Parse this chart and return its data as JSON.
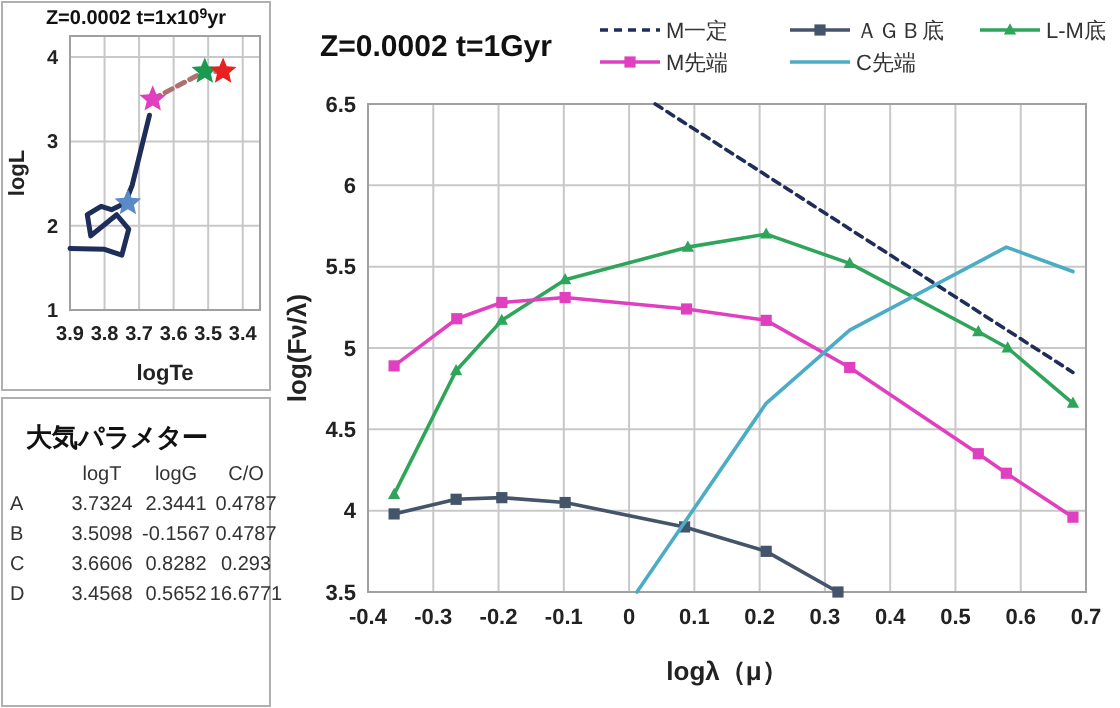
{
  "chart_data": [
    {
      "type": "line",
      "title": "Z=0.0002 t=1x10$^{9}$yr",
      "xlabel": "logTe",
      "ylabel": "logL",
      "xlim": [
        3.9,
        3.35
      ],
      "xticks": [
        3.9,
        3.8,
        3.7,
        3.6,
        3.5,
        3.4
      ],
      "ylim": [
        1,
        4.25
      ],
      "yticks": [
        1,
        2,
        3,
        4
      ],
      "grid": true,
      "series": [
        {
          "color": "#1f2d5a",
          "x": [
            3.9,
            3.8,
            3.75,
            3.73,
            3.765,
            3.84,
            3.85,
            3.81,
            3.78,
            3.74,
            3.72,
            3.67
          ],
          "values": [
            1.73,
            1.72,
            1.65,
            1.96,
            2.13,
            1.88,
            2.13,
            2.23,
            2.19,
            2.27,
            2.48,
            3.31
          ]
        },
        {
          "color": "#b07070",
          "line_style": "dashed",
          "x": [
            3.6606,
            3.5098,
            3.4568
          ],
          "values": [
            3.5,
            3.83,
            3.83
          ]
        },
        {
          "type": "scatter",
          "marker": "star",
          "x": [
            3.7324,
            3.6606,
            3.5098,
            3.4568
          ],
          "values": [
            2.27,
            3.5,
            3.83,
            3.83
          ],
          "colors": [
            "#5b8ac6",
            "#e040c0",
            "#1a9a50",
            "#e82020"
          ]
        }
      ]
    },
    {
      "type": "line",
      "title": "Z=0.0002  t=1Gyr",
      "xlabel": "logλ（μ）",
      "ylabel": "log(Fν/λ)",
      "xlim": [
        -0.4,
        0.7
      ],
      "xticks": [
        -0.4,
        -0.3,
        -0.2,
        -0.1,
        0,
        0.1,
        0.2,
        0.3,
        0.4,
        0.5,
        0.6,
        0.7
      ],
      "ylim": [
        3.5,
        6.5
      ],
      "yticks": [
        3.5,
        4,
        4.5,
        5,
        5.5,
        6,
        6.5
      ],
      "grid": true,
      "legend": "top right",
      "series": [
        {
          "name": "M一定",
          "color": "#1f2d5a",
          "line_style": "dashed",
          "marker": "none",
          "x": [
            0.04,
            0.68
          ],
          "values": [
            6.5,
            4.85
          ]
        },
        {
          "name": "ＡＧＢ底",
          "color": "#44546a",
          "marker": "square",
          "x": [
            -0.36,
            -0.265,
            -0.195,
            -0.098,
            0.085,
            0.21,
            0.32
          ],
          "values": [
            3.98,
            4.07,
            4.08,
            4.05,
            3.9,
            3.75,
            3.5
          ]
        },
        {
          "name": "L-M底",
          "color": "#2ea55a",
          "marker": "triangle",
          "x": [
            -0.36,
            -0.265,
            -0.195,
            -0.098,
            0.09,
            0.21,
            0.338,
            0.535,
            0.58,
            0.68
          ],
          "values": [
            4.1,
            4.86,
            5.17,
            5.42,
            5.62,
            5.7,
            5.52,
            5.1,
            5.0,
            4.66
          ]
        },
        {
          "name": "M先端",
          "color": "#e040c0",
          "marker": "square",
          "x": [
            -0.36,
            -0.264,
            -0.195,
            -0.098,
            0.088,
            0.21,
            0.338,
            0.535,
            0.578,
            0.68
          ],
          "values": [
            4.89,
            5.18,
            5.28,
            5.31,
            5.24,
            5.17,
            4.88,
            4.35,
            4.23,
            3.96
          ]
        },
        {
          "name": "C先端",
          "color": "#4bacc6",
          "marker": "none",
          "x": [
            0.012,
            0.21,
            0.338,
            0.578,
            0.68
          ],
          "values": [
            3.5,
            4.66,
            5.11,
            5.62,
            5.47
          ]
        }
      ]
    },
    {
      "type": "other",
      "title": "大気パラメター",
      "categories": [
        "logT",
        "logG",
        "C/O"
      ],
      "y_categories": [
        "A",
        "B",
        "C",
        "D"
      ],
      "cell_labels": [
        [
          "3.7324",
          "2.3441",
          "0.4787"
        ],
        [
          "3.5098",
          "-0.1567",
          "0.4787"
        ],
        [
          "3.6606",
          "0.8282",
          "0.293"
        ],
        [
          "3.4568",
          "0.5652",
          "16.6771"
        ]
      ]
    }
  ]
}
